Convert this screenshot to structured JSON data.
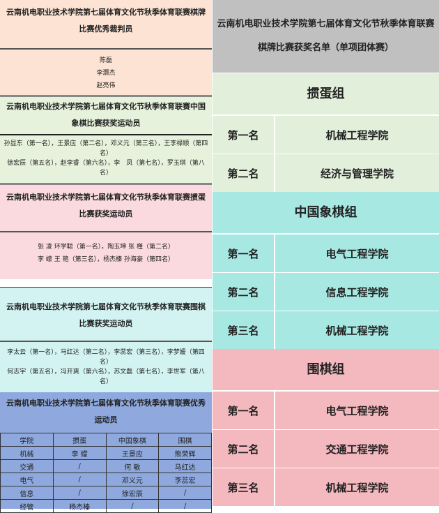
{
  "left": {
    "referees": {
      "title1": "云南机电职业技术学院第七届体育文化节秋季体育联赛棋牌",
      "title2": "比赛优秀裁判员",
      "names": [
        "陈磊",
        "李灏杰",
        "赵亮伟"
      ],
      "color": "#fde3d3"
    },
    "xiangqi": {
      "title1": "云南机电职业技术学院第七届体育文化节秋季体育联赛中国",
      "title2": "象棋比赛获奖运动员",
      "lines": [
        "孙显东（第一名），王景应（第二名），邓义元（第三名），王李禄顺（第四名）",
        "徐宏辰（第五名），赵李睿（第六名），李　凤（第七名），罗玉琪（第八名）"
      ],
      "color": "#e6f2dc"
    },
    "guandan": {
      "title1": "云南机电职业技术学院第七届体育文化节秋季体育联赛掼蛋",
      "title2": "比赛获奖运动员",
      "lines": [
        "张 凌 环学聪（第一名），陶玉坤 张 槿（第二名）",
        "李 蠓 王 艳（第三名），杨杰榛 孙海豪（第四名）"
      ],
      "color": "#fadadf"
    },
    "weiqi": {
      "title1": "云南机电职业技术学院第七届体育文化节秋季体育联赛围棋",
      "title2": "比赛获奖运动员",
      "lines": [
        "李太云（第一名），马红达（第二名），李蕊宏（第三名），李梦媛（第四名）",
        "何志宇（第五名），冯开爽（第六名），苏文磊（第七名），李世军（第八名）"
      ],
      "color": "#d2f3f2"
    },
    "excellent": {
      "title1": "云南机电职业技术学院第七届体育文化节秋季体育联赛优秀",
      "title2": "运动员",
      "color": "#8fa9de",
      "headers": [
        "学院",
        "掼蛋",
        "中国象棋",
        "围棋"
      ],
      "rows": [
        [
          "机械",
          "李 蠓",
          "王景应",
          "熊荣辉"
        ],
        [
          "交通",
          "/",
          "何 敏",
          "马红达"
        ],
        [
          "电气",
          "/",
          "邓义元",
          "李蕊宏"
        ],
        [
          "信息",
          "/",
          "徐宏辰",
          "/"
        ],
        [
          "经管",
          "杨杰榛",
          "/",
          "/"
        ]
      ]
    }
  },
  "right": {
    "title1": "云南机电职业技术学院第七届体育文化节秋季体育联赛",
    "title2": "棋牌比赛获奖名单（单项团体赛）",
    "header_color": "#c0c0c0",
    "groups": [
      {
        "name": "掼蛋组",
        "color": "#e2efda",
        "rows": [
          [
            "第一名",
            "机械工程学院"
          ],
          [
            "第二名",
            "经济与管理学院"
          ]
        ]
      },
      {
        "name": "中国象棋组",
        "color": "#a8e8e2",
        "rows": [
          [
            "第一名",
            "电气工程学院"
          ],
          [
            "第二名",
            "信息工程学院"
          ],
          [
            "第三名",
            "机械工程学院"
          ]
        ]
      },
      {
        "name": "围棋组",
        "color": "#f4b8bf",
        "rows": [
          [
            "第一名",
            "电气工程学院"
          ],
          [
            "第二名",
            "交通工程学院"
          ],
          [
            "第三名",
            "机械工程学院"
          ]
        ]
      }
    ]
  }
}
